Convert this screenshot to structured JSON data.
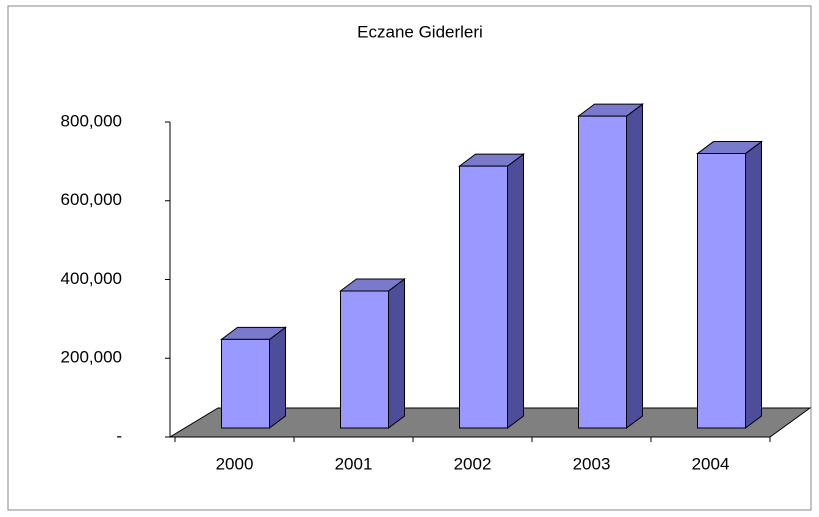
{
  "chart_data": {
    "type": "bar3d",
    "title": "Eczane Giderleri",
    "categories": [
      "2000",
      "2001",
      "2002",
      "2003",
      "2004"
    ],
    "values": [
      225000,
      348000,
      665000,
      792000,
      697000
    ],
    "color": "#9999ff",
    "ylim": [
      0,
      800000
    ],
    "yticks": [
      {
        "value": 0,
        "label": "-"
      },
      {
        "value": 200000,
        "label": "200,000"
      },
      {
        "value": 400000,
        "label": "400,000"
      },
      {
        "value": 600000,
        "label": "600,000"
      },
      {
        "value": 800000,
        "label": "800,000"
      }
    ],
    "grid": false
  }
}
